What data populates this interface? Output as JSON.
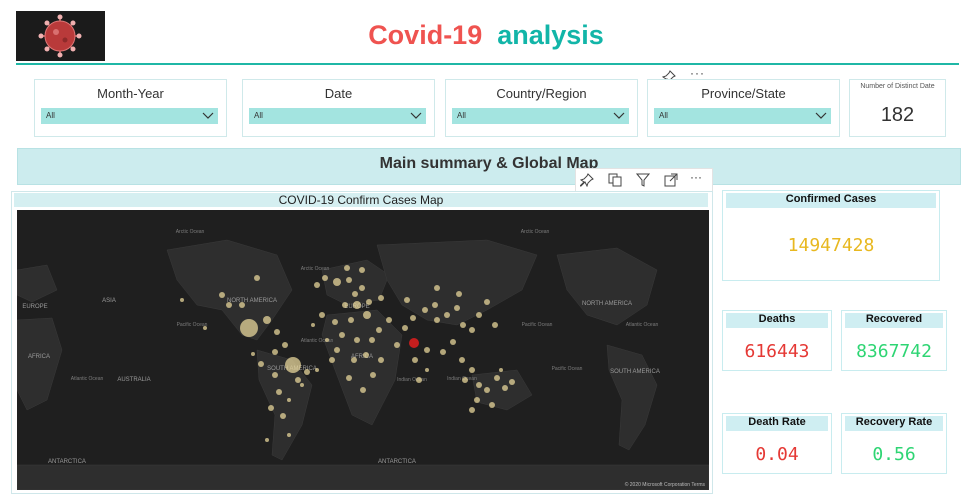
{
  "header": {
    "title_part1": "Covid-19",
    "title_part2": "analysis"
  },
  "slicers": [
    {
      "label": "Month-Year",
      "value": "All"
    },
    {
      "label": "Date",
      "value": "All"
    },
    {
      "label": "Country/Region",
      "value": "All"
    },
    {
      "label": "Province/State",
      "value": "All"
    }
  ],
  "distinct_date": {
    "label": "Number of Distinct Date",
    "value": "182"
  },
  "section_title": "Main summary & Global Map",
  "map": {
    "title": "COVID-19 Confirm Cases Map",
    "continent_labels": [
      "NORTH AMERICA",
      "NORTH AMERICA",
      "SOUTH AMERICA",
      "SOUTH AMERICA",
      "EUROPE",
      "EUROPE",
      "ASIA",
      "AFRICA",
      "AFRICA",
      "AUSTRALIA",
      "ANTARCTICA",
      "ANTARCTICA"
    ],
    "ocean_labels": [
      "Arctic Ocean",
      "Arctic Ocean",
      "Arctic Ocean",
      "Pacific Ocean",
      "Pacific Ocean",
      "Atlantic Ocean",
      "Atlantic Ocean",
      "Indian Ocean",
      "Indian Ocean",
      "Pacific Ocean",
      "Atlantic Ocean"
    ],
    "attribution": "© 2020 Microsoft Corporation  Terms",
    "colors": {
      "background": "#1f1f1f",
      "land": "#2e2e2e",
      "bubble": "#e6d49a",
      "highlight": "#c41e1e"
    }
  },
  "kpis": {
    "confirmed": {
      "label": "Confirmed Cases",
      "value": "14947428",
      "color": "#e8b820"
    },
    "deaths": {
      "label": "Deaths",
      "value": "616443",
      "color": "#e53935"
    },
    "recovered": {
      "label": "Recovered",
      "value": "8367742",
      "color": "#2ed573"
    },
    "death_rate": {
      "label": "Death Rate",
      "value": "0.04",
      "color": "#e53935"
    },
    "recovery_rate": {
      "label": "Recovery Rate",
      "value": "0.56",
      "color": "#2ed573"
    }
  },
  "icons": [
    "virus-icon",
    "pin-icon",
    "more-icon",
    "copy-icon",
    "filter-icon",
    "focus-icon",
    "chevron-down-icon"
  ]
}
